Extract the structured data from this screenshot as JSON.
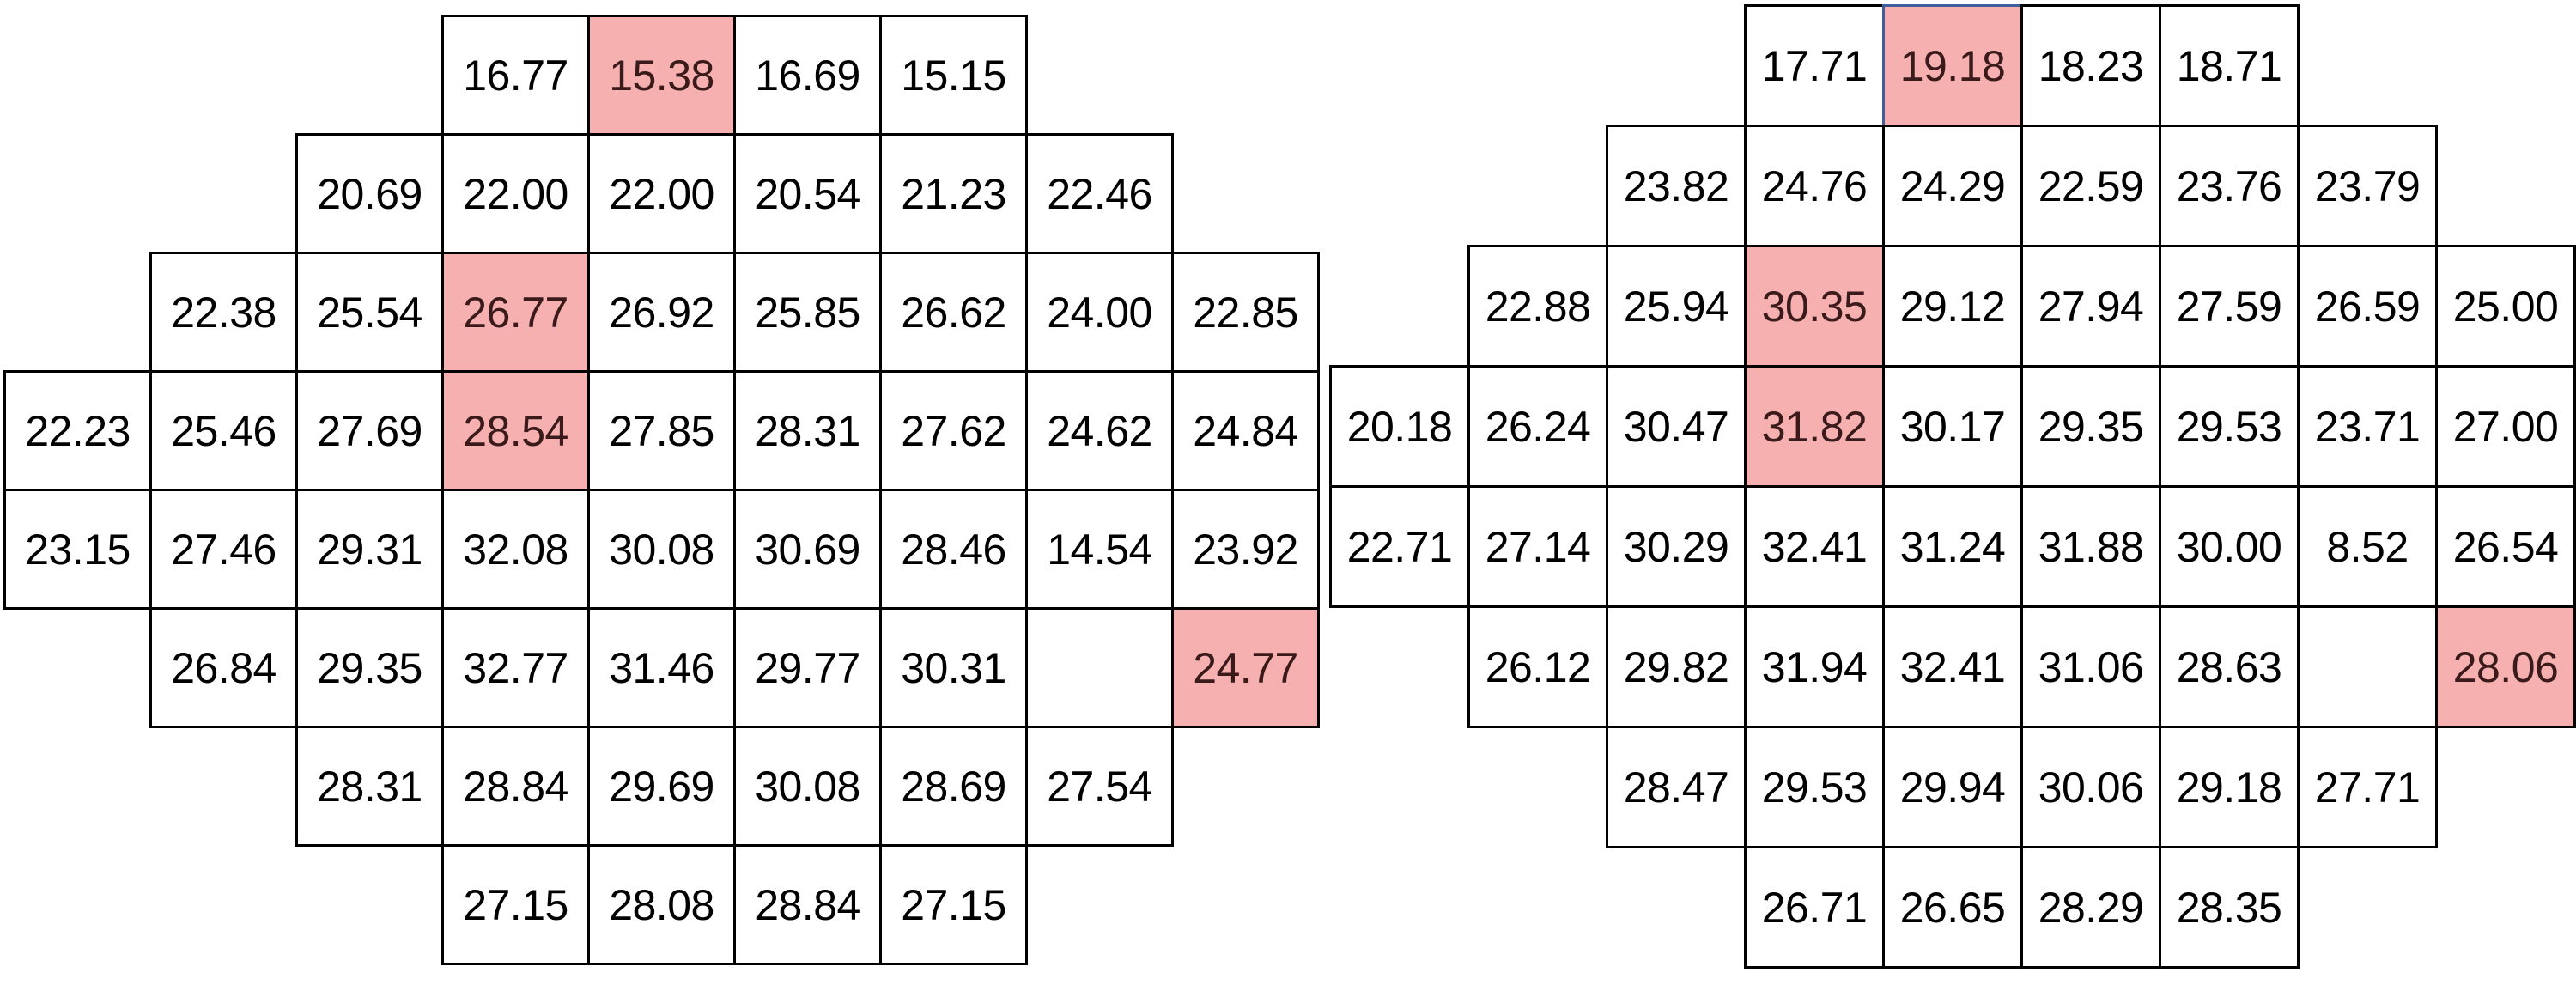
{
  "colors": {
    "highlight": "#f7b0b0",
    "border": "#000000",
    "boxed_border": "#3f5f9a"
  },
  "grids": [
    {
      "rows": [
        {
          "cells": [
            {
              "v": "16.77"
            },
            {
              "v": "15.38",
              "hl": true
            },
            {
              "v": "16.69"
            },
            {
              "v": "15.15"
            }
          ]
        },
        {
          "cells": [
            {
              "v": "20.69"
            },
            {
              "v": "22.00"
            },
            {
              "v": "22.00"
            },
            {
              "v": "20.54"
            },
            {
              "v": "21.23"
            },
            {
              "v": "22.46"
            }
          ]
        },
        {
          "cells": [
            {
              "v": "22.38"
            },
            {
              "v": "25.54"
            },
            {
              "v": "26.77",
              "hl": true
            },
            {
              "v": "26.92"
            },
            {
              "v": "25.85"
            },
            {
              "v": "26.62"
            },
            {
              "v": "24.00"
            },
            {
              "v": "22.85"
            }
          ]
        },
        {
          "cells": [
            {
              "v": "22.23"
            },
            {
              "v": "25.46"
            },
            {
              "v": "27.69"
            },
            {
              "v": "28.54",
              "hl": true
            },
            {
              "v": "27.85"
            },
            {
              "v": "28.31"
            },
            {
              "v": "27.62"
            },
            {
              "v": "24.62"
            },
            {
              "v": "24.84"
            }
          ]
        },
        {
          "cells": [
            {
              "v": "23.15"
            },
            {
              "v": "27.46"
            },
            {
              "v": "29.31"
            },
            {
              "v": "32.08"
            },
            {
              "v": "30.08"
            },
            {
              "v": "30.69"
            },
            {
              "v": "28.46"
            },
            {
              "v": "14.54"
            },
            {
              "v": "23.92"
            }
          ]
        },
        {
          "cells": [
            {
              "v": "26.84"
            },
            {
              "v": "29.35"
            },
            {
              "v": "32.77"
            },
            {
              "v": "31.46"
            },
            {
              "v": "29.77"
            },
            {
              "v": "30.31"
            },
            {
              "v": ""
            },
            {
              "v": "24.77",
              "hl": true
            }
          ]
        },
        {
          "cells": [
            {
              "v": "28.31"
            },
            {
              "v": "28.84"
            },
            {
              "v": "29.69"
            },
            {
              "v": "30.08"
            },
            {
              "v": "28.69"
            },
            {
              "v": "27.54"
            }
          ]
        },
        {
          "cells": [
            {
              "v": "27.15"
            },
            {
              "v": "28.08"
            },
            {
              "v": "28.84"
            },
            {
              "v": "27.15"
            }
          ]
        }
      ]
    },
    {
      "rows": [
        {
          "cells": [
            {
              "v": "17.71"
            },
            {
              "v": "19.18",
              "hl": true,
              "boxed": true
            },
            {
              "v": "18.23"
            },
            {
              "v": "18.71"
            }
          ]
        },
        {
          "cells": [
            {
              "v": "23.82"
            },
            {
              "v": "24.76"
            },
            {
              "v": "24.29"
            },
            {
              "v": "22.59"
            },
            {
              "v": "23.76"
            },
            {
              "v": "23.79"
            }
          ]
        },
        {
          "cells": [
            {
              "v": "22.88"
            },
            {
              "v": "25.94"
            },
            {
              "v": "30.35",
              "hl": true
            },
            {
              "v": "29.12"
            },
            {
              "v": "27.94"
            },
            {
              "v": "27.59"
            },
            {
              "v": "26.59"
            },
            {
              "v": "25.00"
            }
          ]
        },
        {
          "cells": [
            {
              "v": "20.18"
            },
            {
              "v": "26.24"
            },
            {
              "v": "30.47"
            },
            {
              "v": "31.82",
              "hl": true
            },
            {
              "v": "30.17"
            },
            {
              "v": "29.35"
            },
            {
              "v": "29.53"
            },
            {
              "v": "23.71"
            },
            {
              "v": "27.00"
            }
          ]
        },
        {
          "cells": [
            {
              "v": "22.71"
            },
            {
              "v": "27.14"
            },
            {
              "v": "30.29"
            },
            {
              "v": "32.41"
            },
            {
              "v": "31.24"
            },
            {
              "v": "31.88"
            },
            {
              "v": "30.00"
            },
            {
              "v": "8.52"
            },
            {
              "v": "26.54"
            }
          ]
        },
        {
          "cells": [
            {
              "v": "26.12"
            },
            {
              "v": "29.82"
            },
            {
              "v": "31.94"
            },
            {
              "v": "32.41"
            },
            {
              "v": "31.06"
            },
            {
              "v": "28.63"
            },
            {
              "v": ""
            },
            {
              "v": "28.06",
              "hl": true
            }
          ]
        },
        {
          "cells": [
            {
              "v": "28.47"
            },
            {
              "v": "29.53"
            },
            {
              "v": "29.94"
            },
            {
              "v": "30.06"
            },
            {
              "v": "29.18"
            },
            {
              "v": "27.71"
            }
          ]
        },
        {
          "cells": [
            {
              "v": "26.71"
            },
            {
              "v": "26.65"
            },
            {
              "v": "28.29"
            },
            {
              "v": "28.35"
            }
          ]
        }
      ]
    }
  ]
}
